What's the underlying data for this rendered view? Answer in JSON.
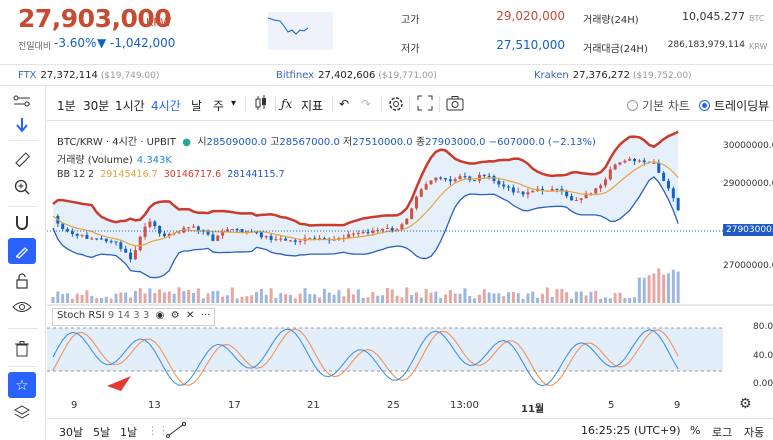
{
  "header": {
    "price": "27,903,000",
    "currency": "KRW",
    "change_label": "전일대비",
    "change_pct": "-3.60%",
    "change_amt": "▼ -1,042,000",
    "high_label": "고가",
    "high_value": "29,020,000",
    "low_label": "저가",
    "low_value": "27,510,000",
    "vol_label": "거래량(24H)",
    "vol_value": "10,045.277",
    "vol_unit": "BTC",
    "amt_label": "거래대금(24H)",
    "amt_value": "286,183,979,114",
    "amt_unit": "KRW"
  },
  "exchanges": [
    {
      "name": "FTX",
      "price": "27,372,114",
      "usd": "($19,749.00)"
    },
    {
      "name": "Bitfinex",
      "price": "27,402,606",
      "usd": "($19,771.00)"
    },
    {
      "name": "Kraken",
      "price": "27,376,272",
      "usd": "($19,752.00)"
    }
  ],
  "toolbar": {
    "t1m": "1분",
    "t30m": "30분",
    "t1h": "1시간",
    "t4h": "4시간",
    "day": "날",
    "week": "주",
    "indicator": "지표",
    "basic_chart": "기본 차트",
    "tradingview": "트레이딩뷰"
  },
  "legend": {
    "pair": "BTC/KRW",
    "interval": "4시간",
    "exchange": "UPBIT",
    "open_label": "시",
    "open": "28509000.0",
    "high_label": "고",
    "high": "28567000.0",
    "low_label": "저",
    "low": "27510000.0",
    "close_label": "종",
    "close": "27903000.0",
    "change": "−607000.0 (−2.13%)",
    "volume_label": "거래량 (Volume)",
    "volume_value": "4.343K",
    "bb_label": "BB 12 2",
    "bb_mid": "29145416.7",
    "bb_upper": "30146717.6",
    "bb_lower": "28144115.7",
    "stoch_label": "Stoch RSI",
    "stoch_params": "9 14 3 3"
  },
  "yaxis": {
    "price_ticks": [
      "30000000.0",
      "29000000.0",
      "27000000.0"
    ],
    "current_price_tag": "27903000.0",
    "rsi_ticks": [
      "80.00",
      "40.00",
      "0.00"
    ]
  },
  "xaxis": [
    "9",
    "13",
    "17",
    "21",
    "25",
    "13:00",
    "11월",
    "5",
    "9"
  ],
  "bottom": {
    "r30d": "30날",
    "r5d": "5날",
    "r1d": "1날",
    "time": "16:25:25 (UTC+9)",
    "percent": "%",
    "log": "로그",
    "auto": "자동"
  },
  "colors": {
    "up": "#d24f45",
    "down": "#1261c4",
    "bb_upper": "#cc3a2b",
    "bb_mid": "#e8a33d",
    "bb_lower": "#2a5fc5",
    "bb_fill": "#dbeaf8",
    "rsi_k": "#4a90d9",
    "rsi_d": "#f0945a"
  }
}
